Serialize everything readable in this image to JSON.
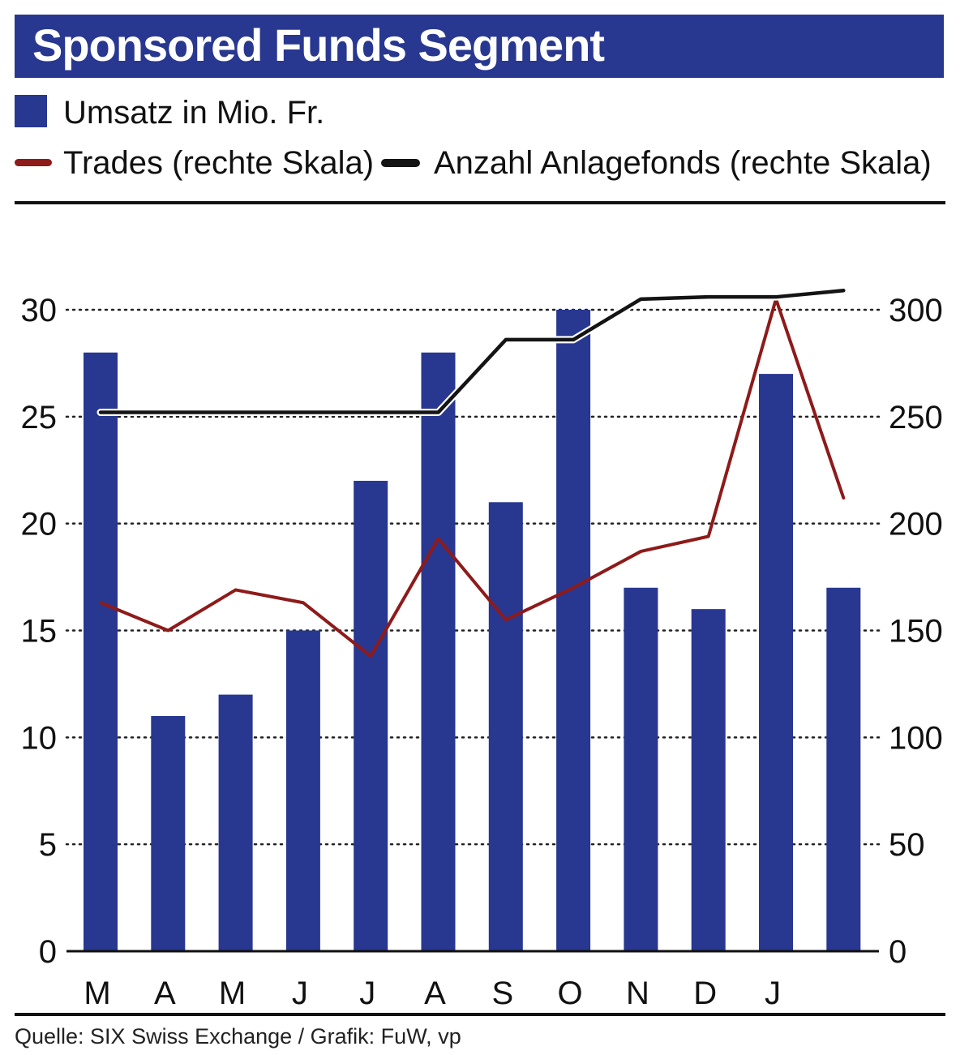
{
  "chart_data": {
    "type": "bar",
    "title": "Sponsored Funds Segment",
    "categories": [
      "M",
      "A",
      "M",
      "J",
      "J",
      "A",
      "S",
      "O",
      "N",
      "D",
      "J",
      ""
    ],
    "series": [
      {
        "name": "Umsatz in Mio. Fr.",
        "type": "bar",
        "axis": "left",
        "color": "#283790",
        "values": [
          28,
          11,
          12,
          15,
          22,
          28,
          21,
          30,
          17,
          16,
          27,
          17
        ]
      },
      {
        "name": "Trades (rechte Skala)",
        "type": "line",
        "axis": "right",
        "color": "#8e1a1a",
        "values": [
          163,
          150,
          169,
          163,
          138,
          193,
          155,
          170,
          187,
          194,
          305,
          212
        ]
      },
      {
        "name": "Anzahl Anlagefonds (rechte Skala)",
        "type": "line",
        "axis": "right",
        "color": "#141414",
        "values": [
          252,
          252,
          252,
          252,
          252,
          252,
          286,
          286,
          305,
          306,
          306,
          309
        ]
      }
    ],
    "y_left": {
      "ylim": [
        0,
        30
      ],
      "ticks": [
        0,
        5,
        10,
        15,
        20,
        25,
        30
      ]
    },
    "y_right": {
      "ylim": [
        0,
        300
      ],
      "ticks": [
        0,
        50,
        100,
        150,
        200,
        250,
        300
      ]
    },
    "grid": "horizontal dotted",
    "legend_position": "top-left"
  },
  "legend": {
    "bar_label": "Umsatz in Mio. Fr.",
    "trades_label": "Trades (rechte Skala)",
    "funds_label": "Anzahl Anlagefonds (rechte Skala)"
  },
  "source": "Quelle: SIX Swiss Exchange / Grafik: FuW, vp",
  "colors": {
    "title_bg": "#283790",
    "bar": "#283790",
    "trades": "#8e1a1a",
    "funds": "#141414"
  }
}
